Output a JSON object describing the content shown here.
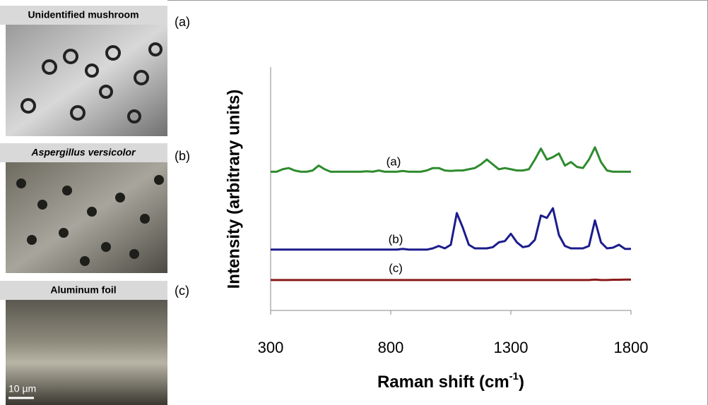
{
  "panels": [
    {
      "title": "Unidentified mushroom",
      "label": "(a)"
    },
    {
      "title": "Aspergillus versicolor",
      "label": "(b)"
    },
    {
      "title": "Aluminum foil",
      "label": "(c)",
      "scale": "10 µm"
    }
  ],
  "chart_data": {
    "type": "line",
    "ylabel": "Intensity (arbitrary units)",
    "xlabel": [
      "Raman shift (cm",
      "-1",
      ")"
    ],
    "xlim": [
      300,
      1800
    ],
    "xticks": [
      300,
      800,
      1300,
      1800
    ],
    "ylim": [
      0,
      100
    ],
    "x": [
      300,
      325,
      350,
      375,
      400,
      425,
      450,
      475,
      500,
      525,
      550,
      575,
      600,
      625,
      650,
      675,
      700,
      725,
      750,
      775,
      800,
      825,
      850,
      875,
      900,
      925,
      950,
      975,
      1000,
      1025,
      1050,
      1075,
      1100,
      1125,
      1150,
      1175,
      1200,
      1225,
      1250,
      1275,
      1300,
      1325,
      1350,
      1375,
      1400,
      1425,
      1450,
      1475,
      1500,
      1525,
      1550,
      1575,
      1600,
      1625,
      1650,
      1675,
      1700,
      1725,
      1750,
      1775,
      1800
    ],
    "series": [
      {
        "name": "(a)",
        "color": "#2e8b2e",
        "values": [
          57,
          57,
          58,
          58.5,
          57.5,
          57,
          57,
          57.5,
          59.5,
          58,
          57,
          57,
          57,
          57,
          57,
          57,
          57.2,
          57,
          57.5,
          57,
          57,
          57,
          57.3,
          57,
          57,
          57,
          57.5,
          58.5,
          58.5,
          57.5,
          57.3,
          57.5,
          57.5,
          58,
          58.5,
          60,
          62,
          60,
          58,
          58.5,
          58,
          57.5,
          57.5,
          58,
          62,
          66.5,
          62,
          63,
          64.5,
          59.5,
          61,
          59,
          58.5,
          62,
          67,
          61,
          57.5,
          57,
          57,
          57,
          57
        ]
      },
      {
        "name": "(b)",
        "color": "#1c1c8c",
        "values": [
          25,
          25,
          25,
          25,
          25,
          25,
          25,
          25,
          25,
          25,
          25,
          25,
          25,
          25,
          25,
          25,
          25,
          25,
          25,
          25,
          25,
          25,
          25.3,
          25,
          25,
          25,
          25,
          25.5,
          26.5,
          25.5,
          27,
          40,
          34,
          27,
          25.5,
          25.5,
          25.5,
          26,
          28,
          28.5,
          31.5,
          28,
          26,
          26.5,
          29,
          39,
          38,
          42,
          31,
          26.5,
          25.5,
          25.5,
          25.5,
          26.5,
          37,
          28,
          25.5,
          25.8,
          27,
          25.3,
          25.3
        ]
      },
      {
        "name": "(c)",
        "color": "#8b1a1a",
        "values": [
          12.5,
          12.5,
          12.5,
          12.5,
          12.5,
          12.5,
          12.5,
          12.5,
          12.5,
          12.5,
          12.5,
          12.5,
          12.5,
          12.5,
          12.5,
          12.5,
          12.5,
          12.5,
          12.5,
          12.5,
          12.5,
          12.5,
          12.5,
          12.5,
          12.5,
          12.5,
          12.5,
          12.5,
          12.5,
          12.5,
          12.5,
          12.5,
          12.5,
          12.5,
          12.5,
          12.5,
          12.5,
          12.5,
          12.5,
          12.5,
          12.5,
          12.5,
          12.5,
          12.5,
          12.5,
          12.5,
          12.5,
          12.5,
          12.5,
          12.5,
          12.5,
          12.5,
          12.5,
          12.5,
          12.7,
          12.5,
          12.5,
          12.6,
          12.6,
          12.7,
          12.7
        ]
      }
    ]
  }
}
